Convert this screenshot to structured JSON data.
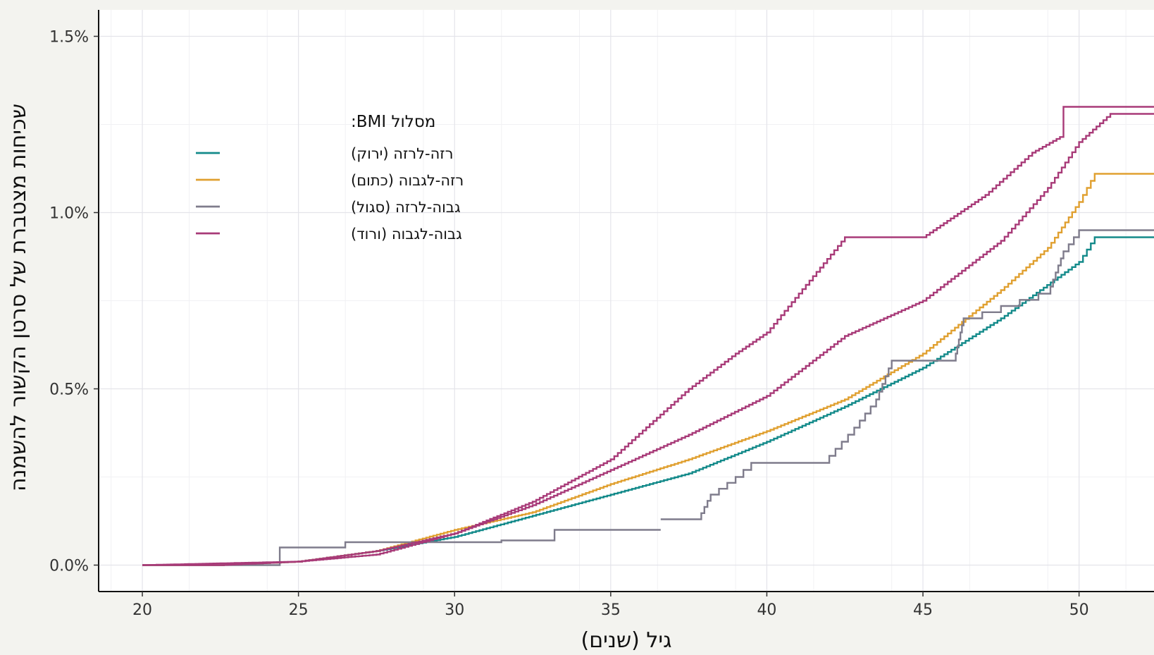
{
  "chart_data": {
    "type": "line",
    "xlabel": "גיל (שנים)",
    "ylabel": "שכיחות מצטברת של סרטן הקשור להשמנה",
    "xlim": [
      18.6,
      52.4
    ],
    "ylim": [
      -0.075,
      1.575
    ],
    "x_ticks": [
      20,
      25,
      30,
      35,
      40,
      45,
      50
    ],
    "x_tick_labels": [
      "20",
      "25",
      "30",
      "35",
      "40",
      "45",
      "50"
    ],
    "y_ticks": [
      0.0,
      0.5,
      1.0,
      1.5
    ],
    "y_tick_labels": [
      "0.0%",
      "0.5%",
      "1.0%",
      "1.5%"
    ],
    "grid": true,
    "legend": {
      "title": "מסלול BMI:",
      "placement": "top-left"
    },
    "series": [
      {
        "name": "רזה-לרזה (ירוק)",
        "color": "#138a8a",
        "step": false,
        "points": [
          [
            20,
            0
          ],
          [
            22.5,
            0
          ],
          [
            25,
            0.01
          ],
          [
            27.5,
            0.04
          ],
          [
            30,
            0.08
          ],
          [
            32.5,
            0.14
          ],
          [
            35,
            0.2
          ],
          [
            37.5,
            0.26
          ],
          [
            40,
            0.35
          ],
          [
            42.5,
            0.45
          ],
          [
            45,
            0.56
          ],
          [
            47.5,
            0.7
          ],
          [
            50,
            0.86
          ],
          [
            50.5,
            0.93
          ],
          [
            52.4,
            0.93
          ]
        ]
      },
      {
        "name": "רזה-לגבוה (כתום)",
        "color": "#e0a030",
        "step": false,
        "points": [
          [
            20,
            0
          ],
          [
            22.5,
            0
          ],
          [
            25,
            0.01
          ],
          [
            27.5,
            0.04
          ],
          [
            30,
            0.1
          ],
          [
            32.5,
            0.15
          ],
          [
            35,
            0.23
          ],
          [
            37.5,
            0.3
          ],
          [
            40,
            0.38
          ],
          [
            42.5,
            0.47
          ],
          [
            45,
            0.6
          ],
          [
            47.5,
            0.78
          ],
          [
            49,
            0.9
          ],
          [
            50,
            1.03
          ],
          [
            50.5,
            1.11
          ],
          [
            52.4,
            1.11
          ]
        ]
      },
      {
        "name": "גבוה-לרזה (סגול)",
        "color": "#7f7c8c",
        "step": true,
        "segments": [
          [
            [
              20,
              0
            ],
            [
              24.4,
              0.01
            ],
            [
              24.4,
              0.05
            ],
            [
              26.5,
              0.05
            ],
            [
              26.5,
              0.065
            ],
            [
              31.5,
              0.065
            ],
            [
              31.5,
              0.07
            ],
            [
              33.2,
              0.07
            ],
            [
              33.2,
              0.1
            ],
            [
              36.6,
              0.1
            ]
          ],
          [
            [
              36.6,
              0.13
            ],
            [
              37.8,
              0.13
            ],
            [
              38.2,
              0.2
            ],
            [
              39,
              0.25
            ],
            [
              39.5,
              0.29
            ],
            [
              41.8,
              0.29
            ],
            [
              42.8,
              0.39
            ],
            [
              43.5,
              0.47
            ],
            [
              44,
              0.58
            ],
            [
              46,
              0.58
            ],
            [
              46.3,
              0.7
            ],
            [
              48.7,
              0.77
            ],
            [
              49,
              0.77
            ],
            [
              49.5,
              0.89
            ],
            [
              50,
              0.95
            ],
            [
              52.4,
              0.95
            ]
          ]
        ]
      },
      {
        "name": "גבוה-לגבוה (ורוד)",
        "color": "#a83a78",
        "step": false,
        "segments": [
          [
            [
              20,
              0
            ],
            [
              22.5,
              0
            ],
            [
              25,
              0.01
            ],
            [
              27.5,
              0.03
            ],
            [
              30,
              0.09
            ],
            [
              32.5,
              0.17
            ],
            [
              35,
              0.27
            ],
            [
              37.5,
              0.37
            ],
            [
              40,
              0.48
            ],
            [
              42.5,
              0.65
            ],
            [
              45,
              0.75
            ],
            [
              47.5,
              0.92
            ],
            [
              49,
              1.07
            ],
            [
              50,
              1.2
            ],
            [
              51,
              1.28
            ],
            [
              52.4,
              1.28
            ]
          ],
          [
            [
              20,
              0
            ],
            [
              25,
              0.01
            ],
            [
              27.5,
              0.04
            ],
            [
              30,
              0.09
            ],
            [
              32.5,
              0.18
            ],
            [
              35,
              0.3
            ],
            [
              37.5,
              0.5
            ],
            [
              39,
              0.6
            ],
            [
              40,
              0.66
            ],
            [
              42.5,
              0.93
            ],
            [
              45,
              0.93
            ],
            [
              47,
              1.05
            ],
            [
              48.5,
              1.17
            ],
            [
              49.5,
              1.22
            ],
            [
              49.5,
              1.3
            ],
            [
              52.4,
              1.3
            ]
          ]
        ]
      }
    ]
  }
}
